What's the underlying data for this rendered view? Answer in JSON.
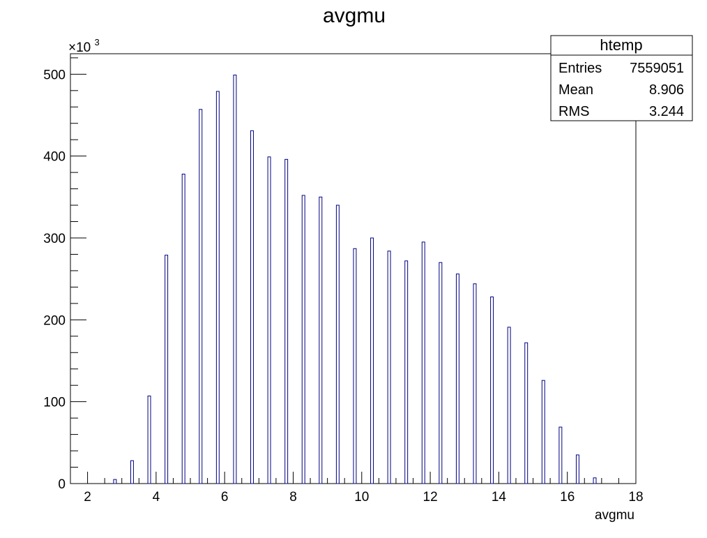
{
  "chart_data": {
    "type": "bar",
    "title": "avgmu",
    "xlabel": "avgmu",
    "ylabel": "",
    "xlim": [
      1.5,
      18
    ],
    "ylim": [
      0,
      525
    ],
    "y_multiplier_label": "×10",
    "y_multiplier_exponent": "3",
    "x_ticks": [
      2,
      4,
      6,
      8,
      10,
      12,
      14,
      16,
      18
    ],
    "y_ticks": [
      0,
      100,
      200,
      300,
      400,
      500
    ],
    "bin_width": 0.08,
    "series": [
      {
        "color": "#000080",
        "x": [
          2.8,
          3.3,
          3.8,
          4.3,
          4.8,
          5.3,
          5.8,
          6.3,
          6.8,
          7.3,
          7.8,
          8.3,
          8.8,
          9.3,
          9.8,
          10.3,
          10.8,
          11.3,
          11.8,
          12.3,
          12.8,
          13.3,
          13.8,
          14.3,
          14.8,
          15.3,
          15.8,
          16.3,
          16.8
        ],
        "values": [
          5,
          28,
          107,
          279,
          378,
          457,
          479,
          499,
          431,
          399,
          396,
          352,
          350,
          340,
          287,
          300,
          284,
          272,
          295,
          270,
          256,
          244,
          228,
          191,
          172,
          126,
          69,
          35,
          7
        ]
      }
    ],
    "stats_box": {
      "name": "htemp",
      "rows": [
        {
          "label": "Entries",
          "value": "7559051"
        },
        {
          "label": "Mean",
          "value": "8.906"
        },
        {
          "label": "RMS",
          "value": "3.244"
        }
      ]
    }
  }
}
